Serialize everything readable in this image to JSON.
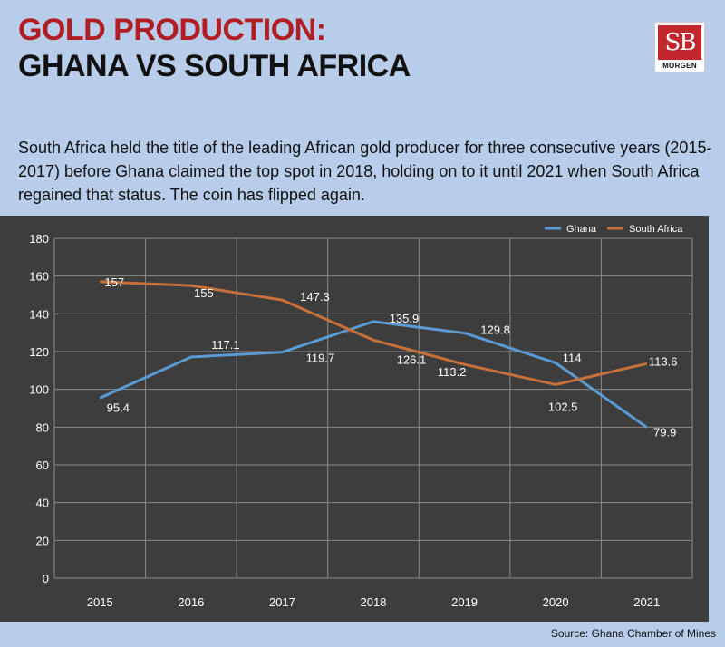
{
  "header": {
    "title_line1": "GOLD PRODUCTION:",
    "title_line2": "GHANA VS SOUTH AFRICA"
  },
  "logo": {
    "initials": "SB",
    "name": "MORGEN"
  },
  "description": "South Africa held the title of the leading African gold producer for three consecutive years (2015-2017) before Ghana claimed the top spot in 2018, holding on to it until 2021 when South Africa regained that status. The coin has flipped again.",
  "source": "Source: Ghana Chamber of Mines",
  "colors": {
    "page_bg": "#b8cde9",
    "title_red": "#b01e24",
    "chart_bg": "#3d3d3d",
    "ghana": "#5b9bd5",
    "south_africa": "#c8703a"
  },
  "chart_data": {
    "type": "line",
    "title": "",
    "xlabel": "",
    "ylabel": "",
    "categories": [
      "2015",
      "2016",
      "2017",
      "2018",
      "2019",
      "2020",
      "2021"
    ],
    "ylim": [
      0,
      180
    ],
    "yticks": [
      0,
      20,
      40,
      60,
      80,
      100,
      120,
      140,
      160,
      180
    ],
    "grid": true,
    "legend_position": "top-right",
    "series": [
      {
        "name": "Ghana",
        "color": "#5b9bd5",
        "values": [
          95.4,
          117.1,
          119.7,
          135.9,
          129.8,
          114,
          79.9
        ],
        "labels": [
          "95.4",
          "117.1",
          "119.7",
          "135.9",
          "129.8",
          "114",
          "79.9"
        ]
      },
      {
        "name": "South Africa",
        "color": "#c8703a",
        "values": [
          157,
          155,
          147.3,
          126.1,
          113.2,
          102.5,
          113.6
        ],
        "labels": [
          "157",
          "155",
          "147.3",
          "126.1",
          "113.2",
          "102.5",
          "113.6"
        ]
      }
    ]
  }
}
